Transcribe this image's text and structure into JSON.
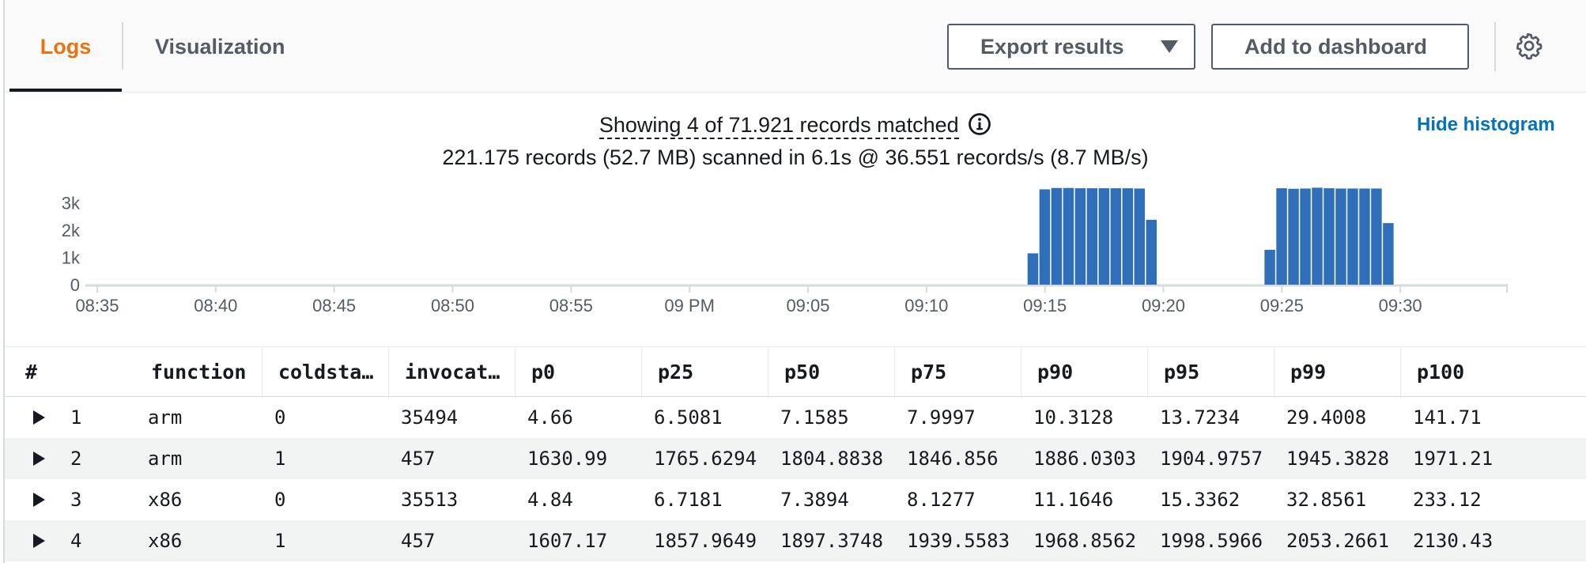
{
  "tabs": [
    {
      "label": "Logs",
      "active": true
    },
    {
      "label": "Visualization",
      "active": false
    }
  ],
  "toolbar": {
    "export_label": "Export results",
    "dashboard_label": "Add to dashboard",
    "settings_icon": "gear-icon"
  },
  "summary": {
    "matched": "Showing 4 of 71.921 records matched",
    "scanned": "221.175 records (52.7 MB) scanned in 6.1s @ 36.551 records/s (8.7 MB/s)",
    "hide_histogram": "Hide histogram"
  },
  "colors": {
    "accent": "#ec7211",
    "link": "#0073bb",
    "bar": "#2f6fba"
  },
  "chart_data": {
    "type": "bar",
    "y_ticks": [
      "0",
      "1k",
      "2k",
      "3k"
    ],
    "ylim": [
      0,
      3600
    ],
    "x_ticks": [
      "08:35",
      "08:40",
      "08:45",
      "08:50",
      "08:55",
      "09 PM",
      "09:05",
      "09:10",
      "09:15",
      "09:20",
      "09:25",
      "09:30"
    ],
    "x_range_minutes": [
      -0.5,
      59.5
    ],
    "bin_minutes": 0.5,
    "bins": [
      {
        "t": 39.5,
        "v": 1150
      },
      {
        "t": 40.0,
        "v": 3500
      },
      {
        "t": 40.5,
        "v": 3550
      },
      {
        "t": 41.0,
        "v": 3550
      },
      {
        "t": 41.5,
        "v": 3540
      },
      {
        "t": 42.0,
        "v": 3540
      },
      {
        "t": 42.5,
        "v": 3540
      },
      {
        "t": 43.0,
        "v": 3540
      },
      {
        "t": 43.5,
        "v": 3540
      },
      {
        "t": 44.0,
        "v": 3530
      },
      {
        "t": 44.5,
        "v": 2380
      },
      {
        "t": 49.5,
        "v": 1280
      },
      {
        "t": 50.0,
        "v": 3540
      },
      {
        "t": 50.5,
        "v": 3520
      },
      {
        "t": 51.0,
        "v": 3530
      },
      {
        "t": 51.5,
        "v": 3560
      },
      {
        "t": 52.0,
        "v": 3540
      },
      {
        "t": 52.5,
        "v": 3530
      },
      {
        "t": 53.0,
        "v": 3530
      },
      {
        "t": 53.5,
        "v": 3530
      },
      {
        "t": 54.0,
        "v": 3530
      },
      {
        "t": 54.5,
        "v": 2260
      }
    ]
  },
  "table": {
    "columns": [
      "#",
      "function",
      "coldsta…",
      "invocat…",
      "p0",
      "p25",
      "p50",
      "p75",
      "p90",
      "p95",
      "p99",
      "p100"
    ],
    "rows": [
      [
        "1",
        "arm",
        "0",
        "35494",
        "4.66",
        "6.5081",
        "7.1585",
        "7.9997",
        "10.3128",
        "13.7234",
        "29.4008",
        "141.71"
      ],
      [
        "2",
        "arm",
        "1",
        "457",
        "1630.99",
        "1765.6294",
        "1804.8838",
        "1846.856",
        "1886.0303",
        "1904.9757",
        "1945.3828",
        "1971.21"
      ],
      [
        "3",
        "x86",
        "0",
        "35513",
        "4.84",
        "6.7181",
        "7.3894",
        "8.1277",
        "11.1646",
        "15.3362",
        "32.8561",
        "233.12"
      ],
      [
        "4",
        "x86",
        "1",
        "457",
        "1607.17",
        "1857.9649",
        "1897.3748",
        "1939.5583",
        "1968.8562",
        "1998.5966",
        "2053.2661",
        "2130.43"
      ]
    ]
  }
}
